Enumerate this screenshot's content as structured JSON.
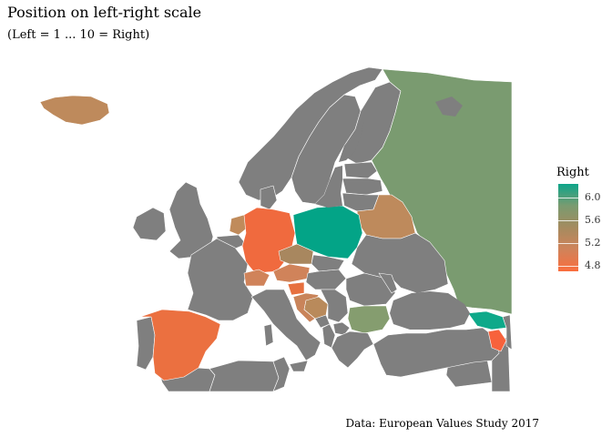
{
  "title": "Position on left-right scale",
  "subtitle": "(Left = 1 ... 10 = Right)",
  "caption": "Data: European Values Study 2017",
  "legend": {
    "title": "Right",
    "min": 4.7,
    "max": 6.25,
    "ticks": [
      {
        "label": "6.0",
        "value": 6.0
      },
      {
        "label": "5.6",
        "value": 5.6
      },
      {
        "label": "5.2",
        "value": 5.2
      },
      {
        "label": "4.8",
        "value": 4.8
      }
    ],
    "gradient": [
      "#0DA58A",
      "#7A9B70",
      "#A58B5F",
      "#D0835A",
      "#FA6E3E"
    ]
  },
  "colors": {
    "no_data": "#7F7F7F",
    "border": "#ffffff"
  },
  "regions": [
    {
      "name": "Iceland",
      "value": 5.4,
      "fill": "#BE8A5C"
    },
    {
      "name": "Norway",
      "value": null,
      "fill": "#7F7F7F"
    },
    {
      "name": "Sweden",
      "value": null,
      "fill": "#7F7F7F"
    },
    {
      "name": "Finland",
      "value": null,
      "fill": "#7F7F7F"
    },
    {
      "name": "Russia",
      "value": 5.7,
      "fill": "#7A9B70"
    },
    {
      "name": "Estonia",
      "value": null,
      "fill": "#7F7F7F"
    },
    {
      "name": "Latvia",
      "value": null,
      "fill": "#7F7F7F"
    },
    {
      "name": "Lithuania",
      "value": null,
      "fill": "#7F7F7F"
    },
    {
      "name": "Belarus",
      "value": 5.4,
      "fill": "#BE8A5C"
    },
    {
      "name": "Ireland",
      "value": null,
      "fill": "#7F7F7F"
    },
    {
      "name": "United Kingdom",
      "value": null,
      "fill": "#7F7F7F"
    },
    {
      "name": "Denmark",
      "value": null,
      "fill": "#7F7F7F"
    },
    {
      "name": "Netherlands",
      "value": 5.4,
      "fill": "#C08B5B"
    },
    {
      "name": "Belgium",
      "value": null,
      "fill": "#7F7F7F"
    },
    {
      "name": "Germany",
      "value": 4.8,
      "fill": "#F06A3E"
    },
    {
      "name": "Poland",
      "value": 6.2,
      "fill": "#03A487"
    },
    {
      "name": "Ukraine",
      "value": null,
      "fill": "#7F7F7F"
    },
    {
      "name": "France",
      "value": null,
      "fill": "#7F7F7F"
    },
    {
      "name": "Switzerland",
      "value": 5.1,
      "fill": "#D0835A"
    },
    {
      "name": "Austria",
      "value": 5.1,
      "fill": "#D0835A"
    },
    {
      "name": "Czechia",
      "value": 5.4,
      "fill": "#A8875F"
    },
    {
      "name": "Slovakia",
      "value": null,
      "fill": "#7F7F7F"
    },
    {
      "name": "Hungary",
      "value": null,
      "fill": "#7F7F7F"
    },
    {
      "name": "Slovenia",
      "value": 4.9,
      "fill": "#E7703F"
    },
    {
      "name": "Croatia",
      "value": 5.2,
      "fill": "#C9845A"
    },
    {
      "name": "Bosnia and Herzegovina",
      "value": 5.3,
      "fill": "#B98A5B"
    },
    {
      "name": "Serbia",
      "value": null,
      "fill": "#7F7F7F"
    },
    {
      "name": "Montenegro",
      "value": null,
      "fill": "#7F7F7F"
    },
    {
      "name": "Albania",
      "value": null,
      "fill": "#7F7F7F"
    },
    {
      "name": "North Macedonia",
      "value": null,
      "fill": "#7F7F7F"
    },
    {
      "name": "Romania",
      "value": null,
      "fill": "#7F7F7F"
    },
    {
      "name": "Moldova",
      "value": null,
      "fill": "#7F7F7F"
    },
    {
      "name": "Bulgaria",
      "value": 5.8,
      "fill": "#859D6F"
    },
    {
      "name": "Greece",
      "value": null,
      "fill": "#7F7F7F"
    },
    {
      "name": "Italy",
      "value": null,
      "fill": "#7F7F7F"
    },
    {
      "name": "Spain",
      "value": 4.9,
      "fill": "#EB7040"
    },
    {
      "name": "Portugal",
      "value": null,
      "fill": "#7F7F7F"
    },
    {
      "name": "Turkey",
      "value": null,
      "fill": "#7F7F7F"
    },
    {
      "name": "Georgia",
      "value": 6.2,
      "fill": "#0EA98A"
    },
    {
      "name": "Armenia",
      "value": 4.7,
      "fill": "#F7623C"
    },
    {
      "name": "Azerbaijan",
      "value": null,
      "fill": "#7F7F7F"
    },
    {
      "name": "Morocco",
      "value": null,
      "fill": "#7F7F7F"
    },
    {
      "name": "Algeria",
      "value": null,
      "fill": "#7F7F7F"
    },
    {
      "name": "Tunisia",
      "value": null,
      "fill": "#7F7F7F"
    },
    {
      "name": "Syria",
      "value": null,
      "fill": "#7F7F7F"
    },
    {
      "name": "Iran",
      "value": null,
      "fill": "#7F7F7F"
    }
  ]
}
